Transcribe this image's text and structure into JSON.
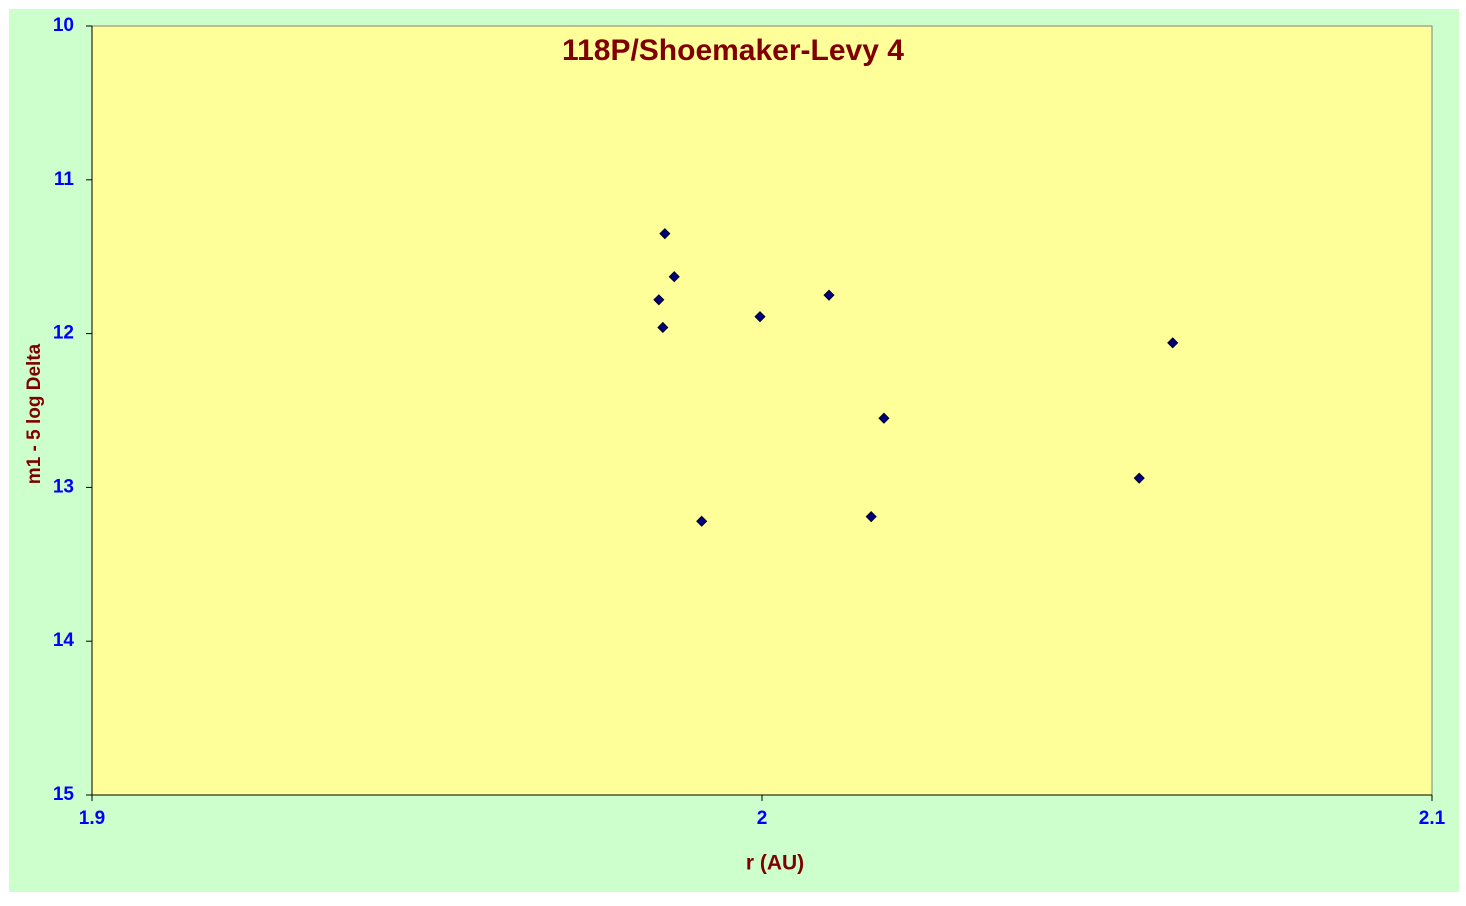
{
  "chart_data": {
    "type": "scatter",
    "title": "118P/Shoemaker-Levy 4",
    "x_label": "r (AU)",
    "y_label": "m1 - 5 log Delta",
    "series": [
      {
        "color": "#000080",
        "x": [
          1.9855,
          1.9869,
          1.9846,
          1.9852,
          1.9997,
          2.01,
          2.0613,
          2.0182,
          2.0563,
          2.0163,
          1.991
        ],
        "values": [
          11.35,
          11.63,
          11.78,
          11.96,
          11.89,
          11.75,
          12.06,
          12.55,
          12.94,
          13.19,
          13.22
        ]
      }
    ],
    "xlim": [
      1.9,
      2.1
    ],
    "xticks": [
      1.9,
      2,
      2.1
    ],
    "ylim": [
      10,
      15
    ],
    "yticks": [
      10,
      11,
      12,
      13,
      14,
      15
    ],
    "y_reversed": true,
    "grid": false
  }
}
